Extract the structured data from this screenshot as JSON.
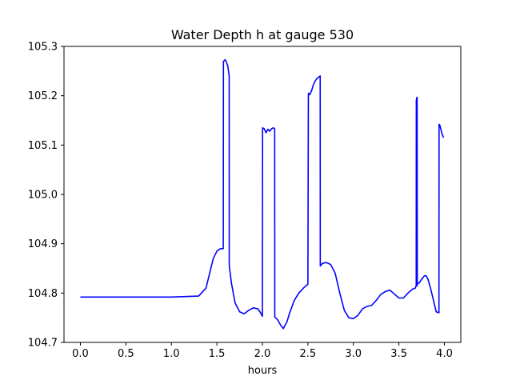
{
  "chart_data": {
    "type": "line",
    "title": "Water Depth h at gauge 530",
    "xlabel": "hours",
    "ylabel": "",
    "xlim": [
      -0.18,
      4.18
    ],
    "ylim": [
      104.7,
      105.3
    ],
    "xticks": [
      0.0,
      0.5,
      1.0,
      1.5,
      2.0,
      2.5,
      3.0,
      3.5,
      4.0
    ],
    "xtick_labels": [
      "0.0",
      "0.5",
      "1.0",
      "1.5",
      "2.0",
      "2.5",
      "3.0",
      "3.5",
      "4.0"
    ],
    "yticks": [
      104.7,
      104.8,
      104.9,
      105.0,
      105.1,
      105.2,
      105.3
    ],
    "ytick_labels": [
      "104.7",
      "104.8",
      "104.9",
      "105.0",
      "105.1",
      "105.2",
      "105.3"
    ],
    "grid": false,
    "series": [
      {
        "color": "#0000ff",
        "x": [
          0.0,
          0.5,
          1.0,
          1.3,
          1.38,
          1.42,
          1.46,
          1.5,
          1.54,
          1.57,
          1.572,
          1.575,
          1.59,
          1.6,
          1.62,
          1.635,
          1.636,
          1.66,
          1.7,
          1.75,
          1.8,
          1.85,
          1.9,
          1.95,
          1.98,
          2.0,
          2.002,
          2.02,
          2.04,
          2.06,
          2.08,
          2.1,
          2.12,
          2.135,
          2.136,
          2.17,
          2.2,
          2.23,
          2.27,
          2.3,
          2.35,
          2.4,
          2.45,
          2.5,
          2.505,
          2.507,
          2.52,
          2.54,
          2.56,
          2.58,
          2.6,
          2.62,
          2.635,
          2.636,
          2.66,
          2.7,
          2.75,
          2.8,
          2.85,
          2.9,
          2.95,
          3.0,
          3.05,
          3.1,
          3.15,
          3.2,
          3.25,
          3.3,
          3.35,
          3.4,
          3.45,
          3.5,
          3.55,
          3.6,
          3.65,
          3.68,
          3.69,
          3.691,
          3.695,
          3.7,
          3.702,
          3.703,
          3.72,
          3.75,
          3.78,
          3.8,
          3.82,
          3.85,
          3.88,
          3.91,
          3.94,
          3.941,
          3.95,
          3.96,
          3.97,
          3.99
        ],
        "y": [
          104.792,
          104.792,
          104.792,
          104.794,
          104.81,
          104.84,
          104.87,
          104.885,
          104.89,
          104.89,
          105.27,
          105.27,
          105.273,
          105.27,
          105.26,
          105.24,
          104.855,
          104.82,
          104.78,
          104.762,
          104.758,
          104.765,
          104.77,
          104.768,
          104.76,
          104.753,
          105.135,
          105.133,
          105.125,
          105.132,
          105.128,
          105.133,
          105.135,
          105.133,
          104.752,
          104.745,
          104.735,
          104.728,
          104.742,
          104.76,
          104.785,
          104.8,
          104.81,
          104.818,
          105.2,
          105.205,
          105.202,
          105.21,
          105.222,
          105.23,
          105.235,
          105.238,
          105.24,
          104.855,
          104.86,
          104.862,
          104.858,
          104.84,
          104.8,
          104.765,
          104.75,
          104.748,
          104.755,
          104.768,
          104.773,
          104.775,
          104.785,
          104.797,
          104.803,
          104.806,
          104.798,
          104.79,
          104.79,
          104.8,
          104.808,
          104.81,
          104.815,
          105.19,
          105.195,
          105.197,
          104.815,
          104.82,
          104.82,
          104.828,
          104.835,
          104.835,
          104.828,
          104.808,
          104.785,
          104.762,
          104.76,
          105.142,
          105.14,
          105.133,
          105.125,
          105.115
        ]
      }
    ]
  }
}
